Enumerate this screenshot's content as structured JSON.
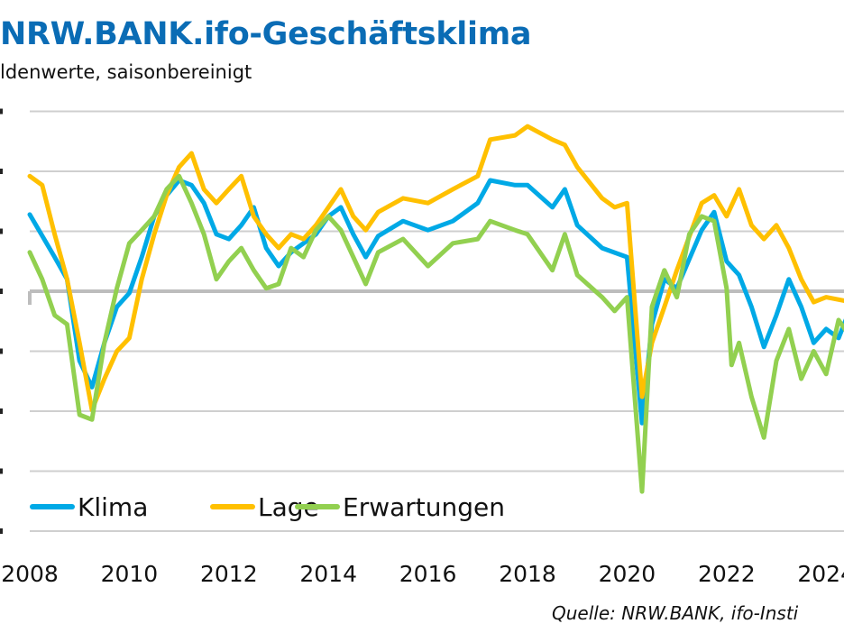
{
  "title": "NRW.BANK.ifo-Geschäftsklima",
  "subtitle": "ldenwerte, saisonbereinigt",
  "source": "Quelle: NRW.BANK, ifo-Insti",
  "chart_data": {
    "type": "line",
    "xlabel": "",
    "ylabel": "",
    "xlim": [
      2008,
      2024.9
    ],
    "ylim": [
      -40,
      30
    ],
    "x_ticks": [
      "2008",
      "2010",
      "2012",
      "2014",
      "2016",
      "2018",
      "2020",
      "2022",
      "2024"
    ],
    "grid": true,
    "legend": "bottom-left",
    "series": [
      {
        "name": "Klima",
        "color": "#00a9e6",
        "x": [
          2008,
          2008.5,
          2008.75,
          2009,
          2009.25,
          2009.5,
          2009.75,
          2010,
          2010.25,
          2010.5,
          2010.75,
          2011,
          2011.25,
          2011.5,
          2011.75,
          2012,
          2012.25,
          2012.5,
          2012.75,
          2013,
          2013.25,
          2013.5,
          2013.75,
          2014,
          2014.25,
          2014.5,
          2014.75,
          2015,
          2015.5,
          2016,
          2016.5,
          2017,
          2017.25,
          2017.75,
          2018,
          2018.5,
          2018.75,
          2019,
          2019.5,
          2020,
          2020.3,
          2020.5,
          2020.75,
          2021,
          2021.5,
          2021.75,
          2022,
          2022.25,
          2022.5,
          2022.75,
          2023,
          2023.25,
          2023.5,
          2023.75,
          2024,
          2024.25,
          2024.5,
          2024.75
        ],
        "y": [
          12.8,
          5.7,
          2,
          -11.6,
          -16,
          -8.6,
          -2.6,
          -0.3,
          5.7,
          12.5,
          16,
          18.5,
          17.7,
          14.7,
          9.5,
          8.7,
          11,
          14,
          7.2,
          4.2,
          6.5,
          8,
          9.5,
          12.5,
          14,
          9.5,
          5.7,
          9.2,
          11.7,
          10.2,
          11.7,
          14.7,
          18.5,
          17.7,
          17.7,
          14,
          17,
          11,
          7.2,
          5.7,
          -22,
          -5.5,
          2,
          0.5,
          10.2,
          13.2,
          5,
          2.7,
          -2.6,
          -9.3,
          -4,
          2,
          -2.6,
          -8.6,
          -6.3,
          -7.8,
          -2.6,
          -4.8
        ]
      },
      {
        "name": "Lage",
        "color": "#ffc000",
        "x": [
          2008,
          2008.25,
          2008.5,
          2008.75,
          2009,
          2009.25,
          2009.5,
          2009.75,
          2010,
          2010.25,
          2010.5,
          2010.75,
          2011,
          2011.25,
          2011.5,
          2011.75,
          2012,
          2012.25,
          2012.5,
          2012.75,
          2013,
          2013.25,
          2013.5,
          2013.75,
          2014,
          2014.25,
          2014.5,
          2014.75,
          2015,
          2015.5,
          2016,
          2016.5,
          2017,
          2017.25,
          2017.75,
          2018,
          2018.5,
          2018.75,
          2019,
          2019.5,
          2019.75,
          2020,
          2020.3,
          2020.5,
          2020.75,
          2021,
          2021.5,
          2021.75,
          2022,
          2022.25,
          2022.5,
          2022.75,
          2023,
          2023.25,
          2023.5,
          2023.75,
          2024,
          2024.5,
          2024.75
        ],
        "y": [
          19.2,
          17.7,
          9.5,
          2,
          -8.6,
          -19.8,
          -14.6,
          -10,
          -7.8,
          2,
          9.5,
          16,
          20.7,
          23,
          17,
          14.7,
          17,
          19.2,
          12.5,
          9.5,
          7.2,
          9.5,
          8.7,
          11,
          14,
          17,
          12.5,
          10.2,
          13.2,
          15.5,
          14.7,
          17,
          19.2,
          25.3,
          26,
          27.5,
          25.3,
          24.4,
          20.7,
          15.5,
          14,
          14.7,
          -17.6,
          -8.6,
          -2.6,
          3.5,
          14.7,
          16,
          12.5,
          17,
          11,
          8.7,
          11,
          7.2,
          2,
          -1.8,
          -1,
          -1.8,
          -2.6
        ]
      },
      {
        "name": "Erwartungen",
        "color": "#92d050",
        "x": [
          2008,
          2008.25,
          2008.5,
          2008.75,
          2009,
          2009.25,
          2009.5,
          2009.75,
          2010,
          2010.25,
          2010.5,
          2010.75,
          2011,
          2011.25,
          2011.5,
          2011.75,
          2012,
          2012.25,
          2012.5,
          2012.75,
          2013,
          2013.25,
          2013.5,
          2013.75,
          2014,
          2014.25,
          2014.5,
          2014.75,
          2015,
          2015.5,
          2016,
          2016.5,
          2017,
          2017.25,
          2017.75,
          2018,
          2018.5,
          2018.75,
          2019,
          2019.5,
          2019.75,
          2020,
          2020.3,
          2020.5,
          2020.75,
          2021,
          2021.25,
          2021.5,
          2021.75,
          2022,
          2022.1,
          2022.25,
          2022.5,
          2022.75,
          2023,
          2023.25,
          2023.5,
          2023.75,
          2024,
          2024.25,
          2024.5,
          2024.75
        ],
        "y": [
          6.5,
          2,
          -4,
          -5.5,
          -20.6,
          -21.4,
          -8.6,
          0.5,
          8,
          10.2,
          12.5,
          17,
          19.2,
          14.7,
          9.5,
          2,
          5,
          7.2,
          3.5,
          0.5,
          1.2,
          7.2,
          5.7,
          10.2,
          12.5,
          10.2,
          5.7,
          1.2,
          6.5,
          8.7,
          4.2,
          8,
          8.7,
          11.7,
          10.2,
          9.5,
          3.5,
          9.5,
          2.7,
          -1,
          -3.3,
          -1,
          -33.4,
          -2.6,
          3.5,
          -1,
          9.5,
          12.5,
          11.7,
          0.5,
          -12.3,
          -8.6,
          -17.6,
          -24.4,
          -11.6,
          -6.3,
          -14.6,
          -10,
          -13.8,
          -4.8,
          -7.8,
          -6.3
        ]
      }
    ]
  }
}
